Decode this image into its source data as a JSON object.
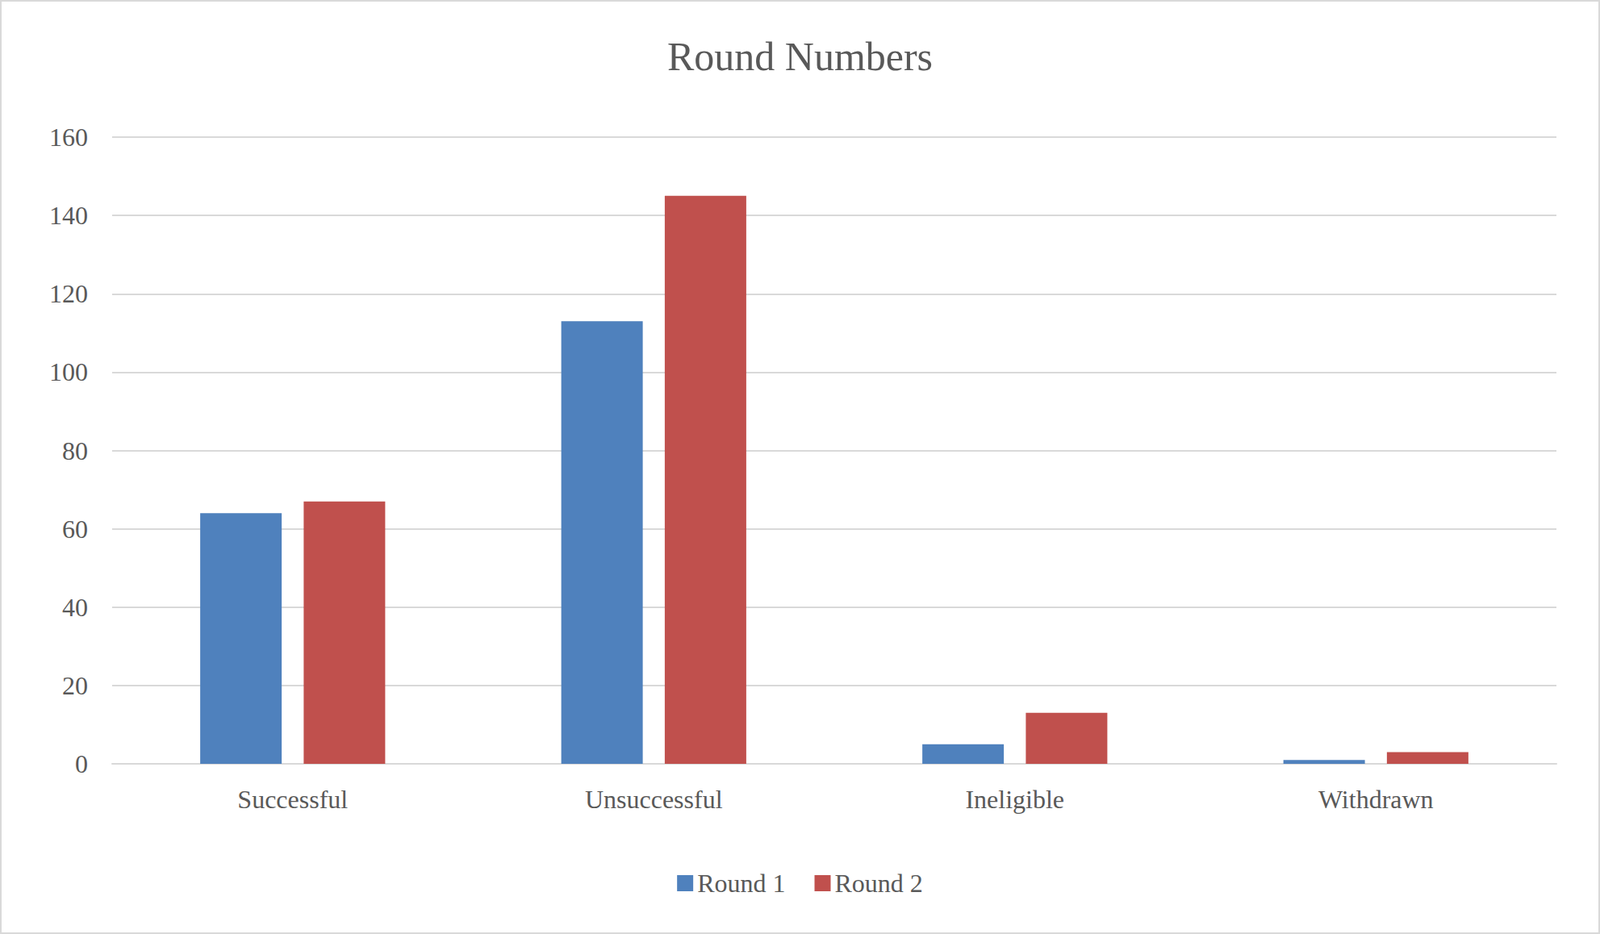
{
  "chart_data": {
    "type": "bar",
    "title": "Round Numbers",
    "categories": [
      "Successful",
      "Unsuccessful",
      "Ineligible",
      "Withdrawn"
    ],
    "series": [
      {
        "name": "Round 1",
        "color": "#4f81bd",
        "values": [
          64,
          113,
          5,
          1
        ]
      },
      {
        "name": "Round 2",
        "color": "#c0504d",
        "values": [
          67,
          145,
          13,
          3
        ]
      }
    ],
    "ylim": [
      0,
      160
    ],
    "yticks": [
      0,
      20,
      40,
      60,
      80,
      100,
      120,
      140,
      160
    ],
    "grid": true,
    "legend": "bottom"
  }
}
